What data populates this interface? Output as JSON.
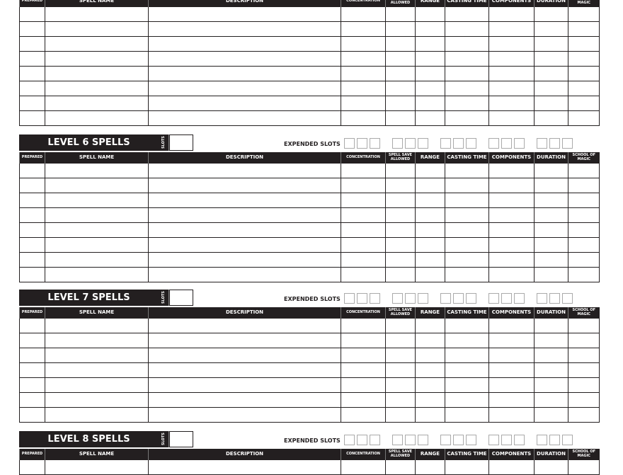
{
  "columns": [
    "PREPARED",
    "SPELL NAME",
    "DESCRIPTION",
    "CONCENTRATION",
    "SPELL SAVE ALLOWED",
    "RANGE",
    "CASTING TIME",
    "COMPONENTS",
    "DURATION",
    "SCHOOL OF MAGIC"
  ],
  "slots_label": "SLOTS",
  "expended_label": "EXPENDED SLOTS",
  "expended_groups": 5,
  "boxes_per_group": 3,
  "sections": [
    {
      "title": "",
      "rows": 8,
      "banner": false
    },
    {
      "title": "LEVEL 6 SPELLS",
      "rows": 8,
      "banner": true
    },
    {
      "title": "LEVEL 7 SPELLS",
      "rows": 7,
      "banner": true
    },
    {
      "title": "LEVEL 8 SPELLS",
      "rows": 1,
      "banner": true
    }
  ]
}
